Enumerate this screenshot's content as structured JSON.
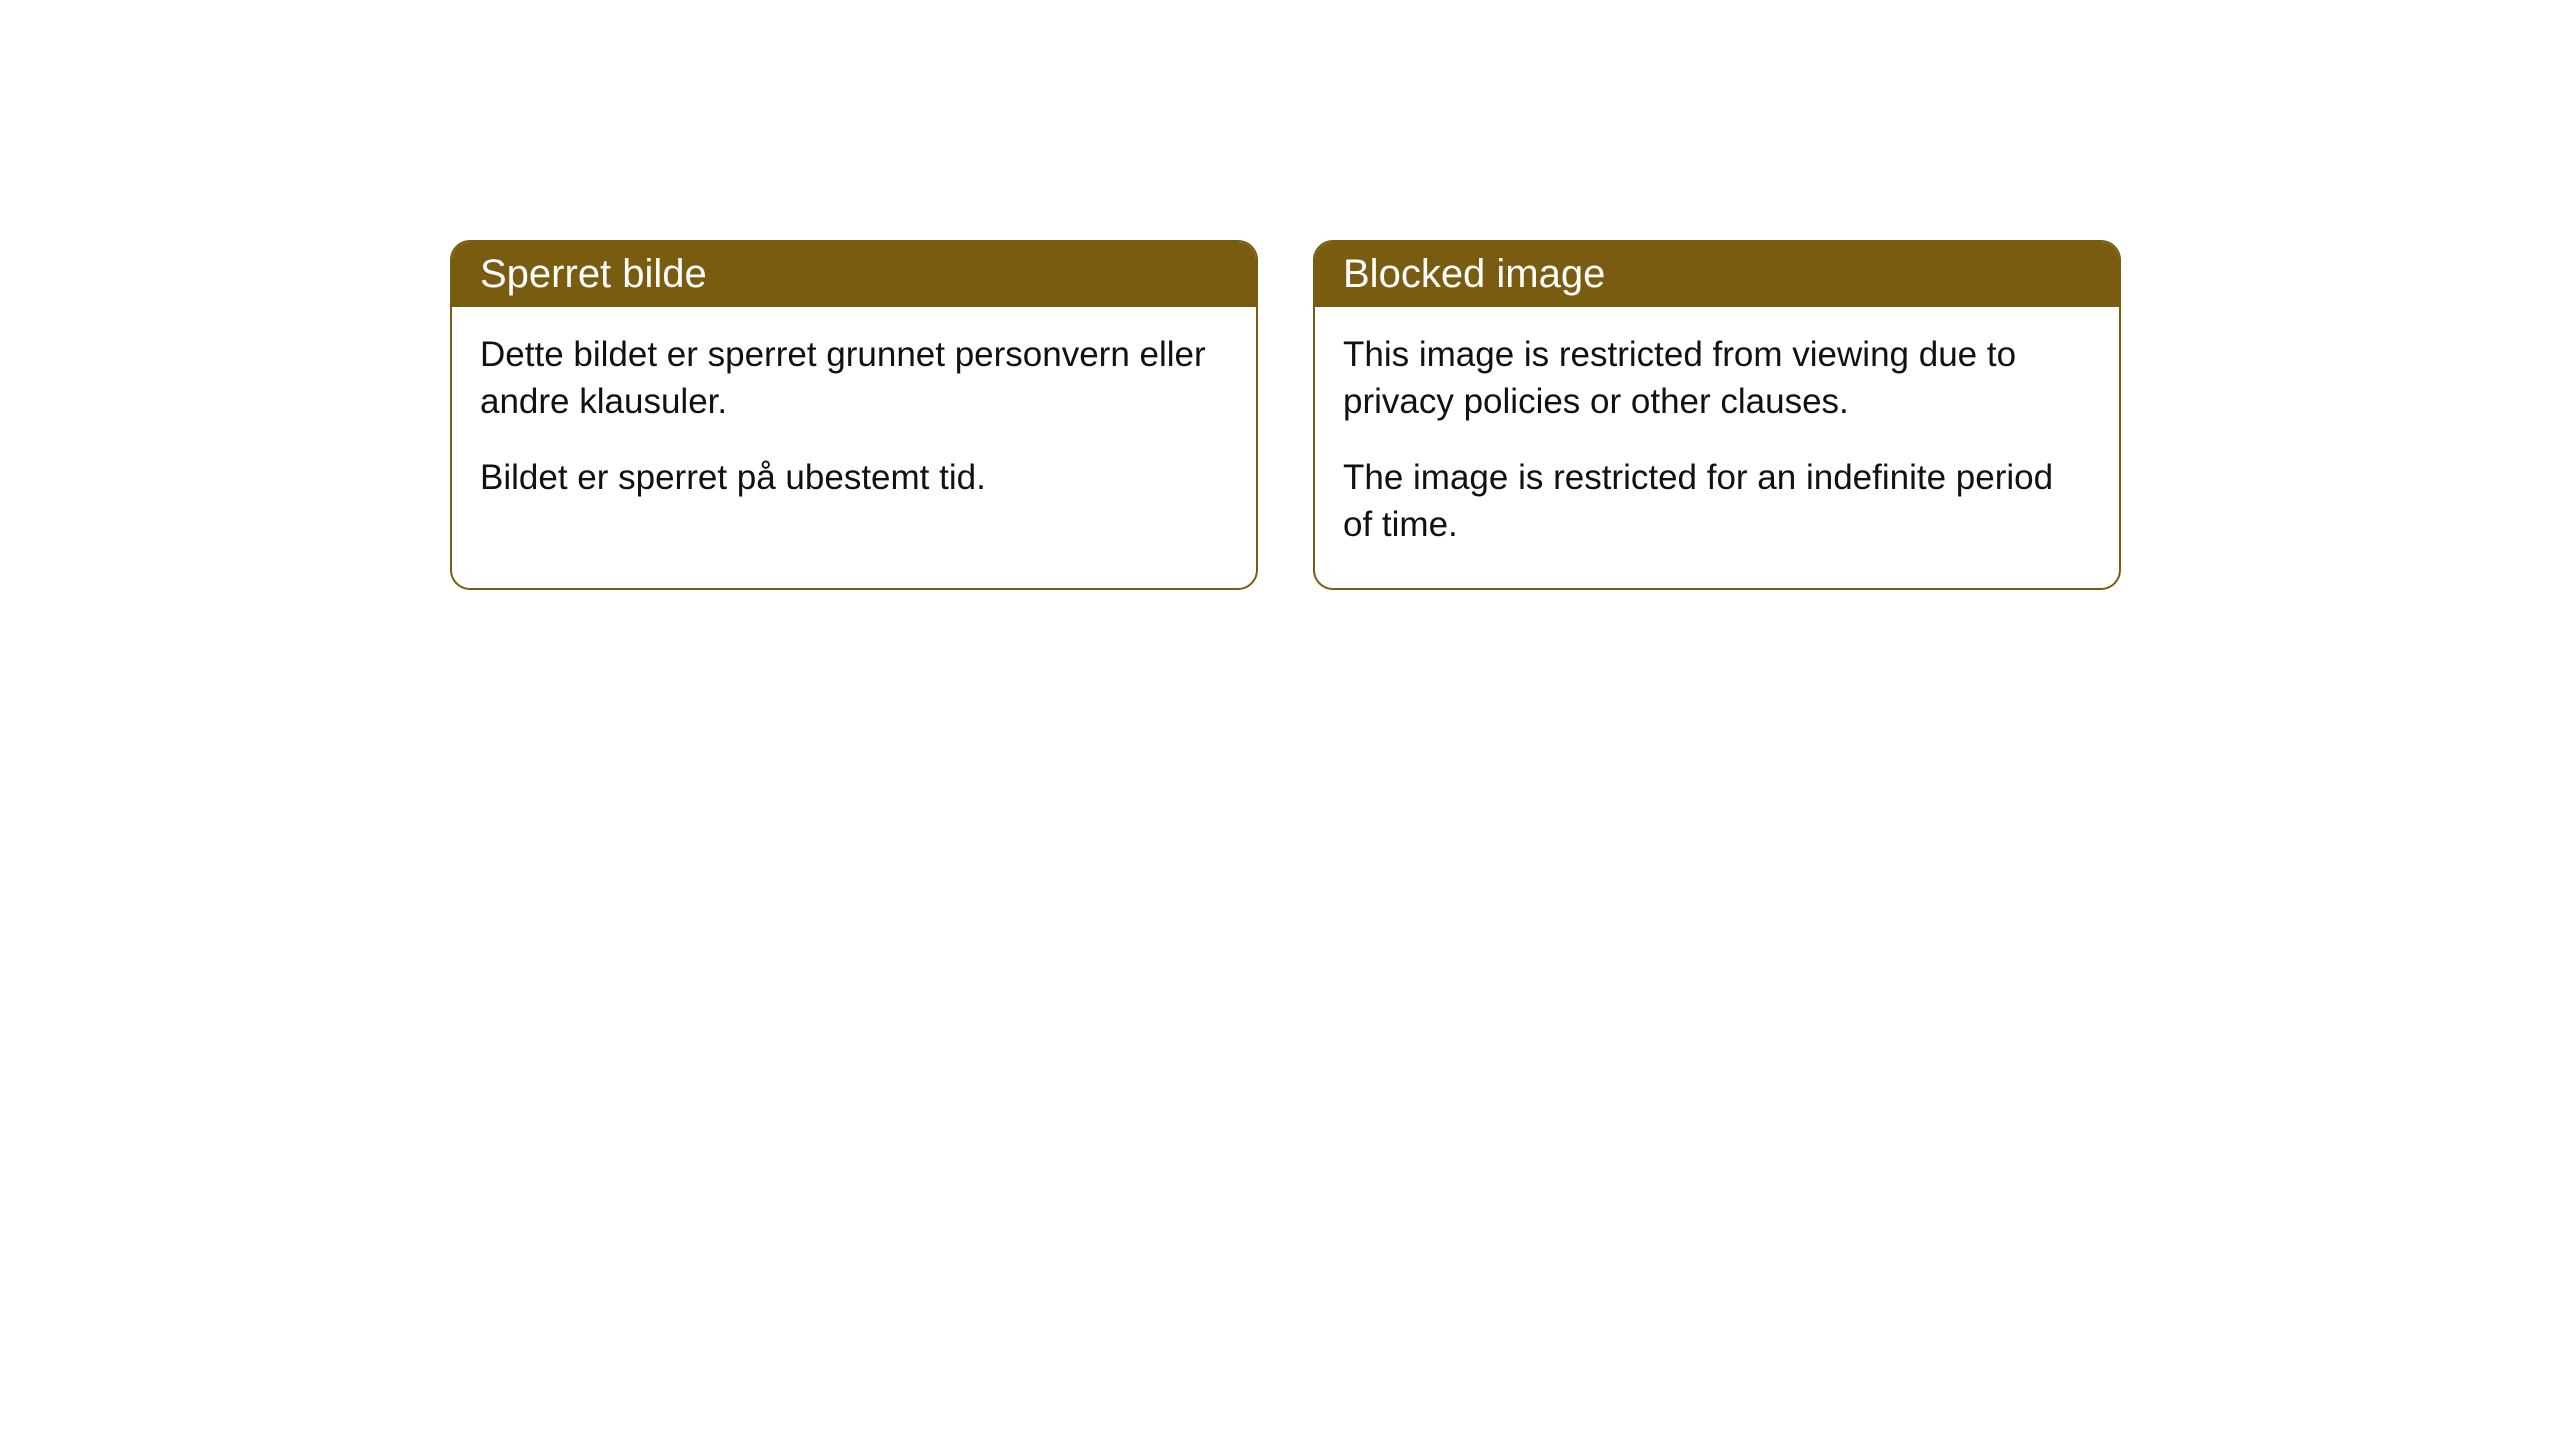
{
  "cards": [
    {
      "title": "Sperret bilde",
      "paragraph1": "Dette bildet er sperret grunnet personvern eller andre klausuler.",
      "paragraph2": "Bildet er sperret på ubestemt tid."
    },
    {
      "title": "Blocked image",
      "paragraph1": "This image is restricted from viewing due to privacy policies or other clauses.",
      "paragraph2": "The image is restricted for an indefinite period of time."
    }
  ],
  "styling": {
    "header_background": "#7a5c10",
    "header_text_color": "#ffffff",
    "border_color": "#7a5c10",
    "body_background": "#ffffff",
    "body_text_color": "#111111",
    "border_radius": 20,
    "title_fontsize": 40,
    "body_fontsize": 35
  }
}
